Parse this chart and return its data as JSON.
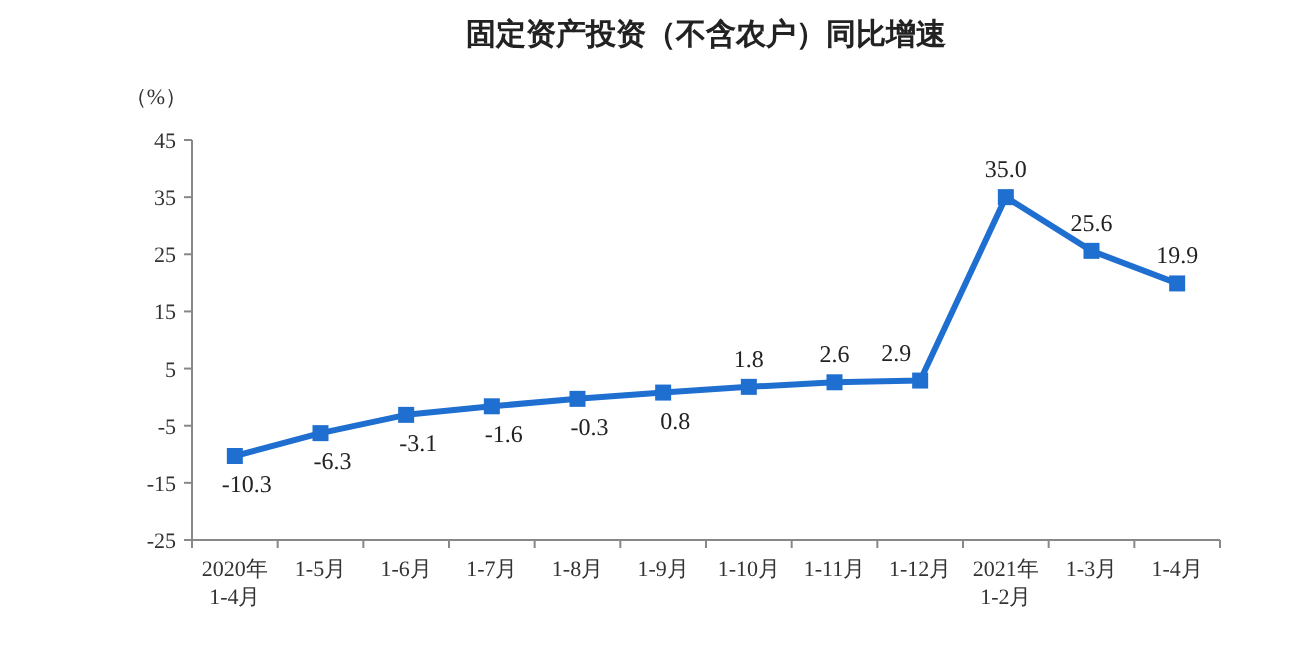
{
  "chart_data": {
    "type": "line",
    "title": "固定资产投资（不含农户）同比增速",
    "ylabel": "（%）",
    "categories": [
      "2020年\n1-4月",
      "1-5月",
      "1-6月",
      "1-7月",
      "1-8月",
      "1-9月",
      "1-10月",
      "1-11月",
      "1-12月",
      "2021年\n1-2月",
      "1-3月",
      "1-4月"
    ],
    "series": [
      {
        "color": "#1f6fd0",
        "values": [
          -10.3,
          -6.3,
          -3.1,
          -1.6,
          -0.3,
          0.8,
          1.8,
          2.6,
          2.9,
          35.0,
          25.6,
          19.9
        ],
        "value_labels": [
          "-10.3",
          "-6.3",
          "-3.1",
          "-1.6",
          "-0.3",
          "0.8",
          "1.8",
          "2.6",
          "2.9",
          "35.0",
          "25.6",
          "19.9"
        ]
      }
    ],
    "ylim": [
      -25,
      45
    ],
    "yticks": [
      -25,
      -15,
      -5,
      5,
      15,
      25,
      35,
      45
    ],
    "marker": "square",
    "line_style": "solid",
    "grid": false
  }
}
